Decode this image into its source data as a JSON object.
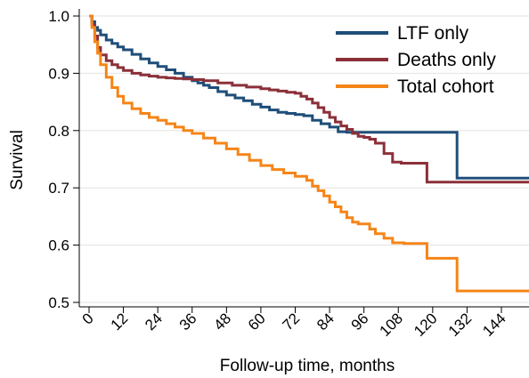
{
  "chart_data": {
    "type": "line",
    "step": true,
    "xlabel": "Follow-up time, months",
    "ylabel": "Survival",
    "xlim": [
      0,
      156
    ],
    "ylim": [
      0.5,
      1.0
    ],
    "xticks": [
      "0",
      "12",
      "24",
      "36",
      "48",
      "60",
      "72",
      "84",
      "96",
      "108",
      "120",
      "132",
      "144"
    ],
    "xtick_values": [
      0,
      12,
      24,
      36,
      48,
      60,
      72,
      84,
      96,
      108,
      120,
      132,
      144
    ],
    "yticks": [
      "0.5",
      "0.6",
      "0.7",
      "0.8",
      "0.9",
      "1.0"
    ],
    "ytick_values": [
      0.5,
      0.6,
      0.7,
      0.8,
      0.9,
      1.0
    ],
    "grid": "horizontal",
    "legend_position": "top-right",
    "series": [
      {
        "name": "LTF only",
        "color": "#1f4e79",
        "x": [
          0,
          1,
          2,
          3,
          4,
          6,
          8,
          10,
          12,
          15,
          18,
          21,
          24,
          27,
          30,
          33,
          36,
          38,
          40,
          42,
          45,
          48,
          51,
          54,
          57,
          60,
          63,
          66,
          69,
          72,
          75,
          78,
          81,
          84,
          87,
          90,
          93,
          96,
          100,
          104,
          108,
          112,
          116,
          120,
          124,
          128,
          128.5,
          132,
          140,
          148,
          156
        ],
        "y": [
          1.0,
          0.99,
          0.98,
          0.975,
          0.967,
          0.958,
          0.952,
          0.946,
          0.941,
          0.933,
          0.925,
          0.918,
          0.912,
          0.906,
          0.9,
          0.893,
          0.887,
          0.883,
          0.879,
          0.875,
          0.868,
          0.862,
          0.857,
          0.852,
          0.846,
          0.841,
          0.836,
          0.832,
          0.83,
          0.828,
          0.826,
          0.818,
          0.812,
          0.806,
          0.798,
          0.797,
          0.797,
          0.797,
          0.797,
          0.797,
          0.797,
          0.797,
          0.797,
          0.797,
          0.797,
          0.797,
          0.717,
          0.717,
          0.717,
          0.717,
          0.717
        ]
      },
      {
        "name": "Deaths only",
        "color": "#8b3039",
        "x": [
          0,
          1,
          2,
          3,
          4,
          6,
          8,
          10,
          12,
          15,
          18,
          21,
          24,
          27,
          30,
          33,
          36,
          40,
          45,
          50,
          55,
          60,
          63,
          66,
          69,
          72,
          74,
          76,
          78,
          80,
          82,
          84,
          86,
          88,
          90,
          92,
          94,
          96,
          98,
          100,
          103,
          106,
          109,
          112,
          115,
          118,
          128,
          132,
          140,
          148,
          156
        ],
        "y": [
          1.0,
          0.985,
          0.965,
          0.945,
          0.932,
          0.922,
          0.915,
          0.91,
          0.905,
          0.9,
          0.897,
          0.895,
          0.893,
          0.892,
          0.891,
          0.89,
          0.889,
          0.887,
          0.883,
          0.879,
          0.876,
          0.873,
          0.871,
          0.869,
          0.867,
          0.865,
          0.86,
          0.855,
          0.848,
          0.84,
          0.832,
          0.823,
          0.815,
          0.808,
          0.802,
          0.795,
          0.79,
          0.788,
          0.785,
          0.778,
          0.76,
          0.745,
          0.743,
          0.743,
          0.743,
          0.71,
          0.71,
          0.71,
          0.71,
          0.71,
          0.71
        ]
      },
      {
        "name": "Total cohort",
        "color": "#f58518",
        "x": [
          0,
          1,
          2,
          3,
          4,
          6,
          8,
          10,
          12,
          15,
          18,
          21,
          24,
          27,
          30,
          33,
          36,
          40,
          44,
          48,
          52,
          56,
          60,
          64,
          68,
          72,
          76,
          78,
          80,
          82,
          84,
          86,
          88,
          90,
          92,
          94,
          96,
          98,
          100,
          103,
          106,
          110,
          114,
          118,
          122,
          126,
          128.5,
          132,
          140,
          148,
          156
        ],
        "y": [
          1.0,
          0.98,
          0.955,
          0.935,
          0.915,
          0.893,
          0.875,
          0.86,
          0.848,
          0.838,
          0.83,
          0.823,
          0.818,
          0.812,
          0.806,
          0.8,
          0.795,
          0.787,
          0.778,
          0.768,
          0.758,
          0.748,
          0.739,
          0.732,
          0.726,
          0.72,
          0.713,
          0.703,
          0.695,
          0.686,
          0.675,
          0.667,
          0.658,
          0.648,
          0.64,
          0.637,
          0.637,
          0.628,
          0.62,
          0.612,
          0.604,
          0.603,
          0.603,
          0.577,
          0.577,
          0.577,
          0.52,
          0.52,
          0.52,
          0.52,
          0.52
        ]
      }
    ]
  }
}
